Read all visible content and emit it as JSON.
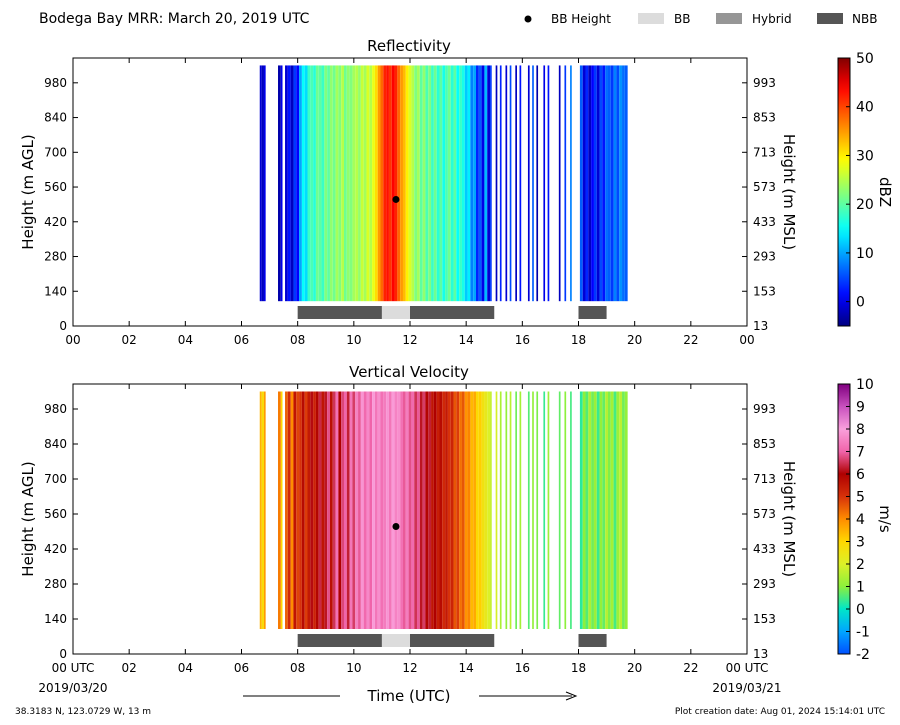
{
  "header": {
    "title": "Bodega Bay MRR:  March 20, 2019 UTC",
    "legend": [
      {
        "label": "BB Height",
        "marker": "dot",
        "color": "#000000"
      },
      {
        "label": "BB",
        "marker": "box",
        "color": "#dcdcdc"
      },
      {
        "label": "Hybrid",
        "marker": "box",
        "color": "#969696"
      },
      {
        "label": "NBB",
        "marker": "box",
        "color": "#555555"
      }
    ]
  },
  "footer": {
    "location": "38.3183 N, 123.0729 W, 13 m",
    "creation": "Plot creation date: Aug 01, 2024 15:14:01 UTC",
    "xlabel": "Time (UTC)",
    "start_date": "2019/03/20",
    "end_date": "2019/03/21"
  },
  "chart_data": [
    {
      "type": "heatmap",
      "title": "Reflectivity",
      "ylabel": "Height (m AGL)",
      "ylabel_right": "Height (m MSL)",
      "xlim": [
        0,
        24
      ],
      "ylim": [
        0,
        1080
      ],
      "x_ticks": [
        "00",
        "02",
        "04",
        "06",
        "08",
        "10",
        "12",
        "14",
        "16",
        "18",
        "20",
        "22",
        "00"
      ],
      "y_ticks": [
        0,
        140,
        280,
        420,
        560,
        700,
        840,
        980
      ],
      "y_ticks_right": [
        13,
        153,
        293,
        433,
        573,
        713,
        853,
        993
      ],
      "data_height_range": [
        100,
        1050
      ],
      "bb_height": {
        "time": 11.5,
        "height": 510
      },
      "bb_segments": [
        {
          "start": 8.0,
          "end": 11.0,
          "class": "NBB"
        },
        {
          "start": 11.0,
          "end": 12.0,
          "class": "BB"
        },
        {
          "start": 12.0,
          "end": 15.0,
          "class": "NBB"
        },
        {
          "start": 18.0,
          "end": 19.0,
          "class": "NBB"
        }
      ],
      "columns": [
        [
          6.65,
          -1
        ],
        [
          6.72,
          -2
        ],
        [
          6.8,
          0
        ],
        [
          7.3,
          -3
        ],
        [
          7.4,
          0
        ],
        [
          7.55,
          -1
        ],
        [
          7.65,
          2
        ],
        [
          7.75,
          -2
        ],
        [
          7.85,
          4
        ],
        [
          7.95,
          1
        ],
        [
          8.05,
          10
        ],
        [
          8.15,
          15
        ],
        [
          8.25,
          13
        ],
        [
          8.35,
          18
        ],
        [
          8.45,
          19
        ],
        [
          8.55,
          17
        ],
        [
          8.65,
          21
        ],
        [
          8.75,
          20
        ],
        [
          8.85,
          18
        ],
        [
          8.95,
          22
        ],
        [
          9.05,
          20
        ],
        [
          9.15,
          23
        ],
        [
          9.25,
          21
        ],
        [
          9.35,
          24
        ],
        [
          9.45,
          22
        ],
        [
          9.55,
          25
        ],
        [
          9.65,
          21
        ],
        [
          9.75,
          23
        ],
        [
          9.85,
          22
        ],
        [
          9.95,
          24
        ],
        [
          10.05,
          25
        ],
        [
          10.15,
          23
        ],
        [
          10.25,
          26
        ],
        [
          10.35,
          24
        ],
        [
          10.45,
          27
        ],
        [
          10.55,
          25
        ],
        [
          10.65,
          28
        ],
        [
          10.75,
          31
        ],
        [
          10.85,
          35
        ],
        [
          10.95,
          38
        ],
        [
          11.05,
          42
        ],
        [
          11.15,
          43
        ],
        [
          11.25,
          41
        ],
        [
          11.35,
          44
        ],
        [
          11.45,
          42
        ],
        [
          11.55,
          38
        ],
        [
          11.65,
          35
        ],
        [
          11.75,
          33
        ],
        [
          11.85,
          30
        ],
        [
          11.95,
          27
        ],
        [
          12.05,
          25
        ],
        [
          12.15,
          22
        ],
        [
          12.25,
          24
        ],
        [
          12.35,
          20
        ],
        [
          12.45,
          23
        ],
        [
          12.55,
          19
        ],
        [
          12.65,
          22
        ],
        [
          12.75,
          18
        ],
        [
          12.85,
          21
        ],
        [
          12.95,
          17
        ],
        [
          13.05,
          20
        ],
        [
          13.15,
          16
        ],
        [
          13.25,
          19
        ],
        [
          13.35,
          21
        ],
        [
          13.45,
          17
        ],
        [
          13.55,
          20
        ],
        [
          13.65,
          15
        ],
        [
          13.75,
          18
        ],
        [
          13.85,
          16
        ],
        [
          13.95,
          12
        ],
        [
          14.05,
          14
        ],
        [
          14.15,
          8
        ],
        [
          14.25,
          10
        ],
        [
          14.35,
          3
        ],
        [
          14.45,
          6
        ],
        [
          14.55,
          0
        ],
        [
          14.65,
          11
        ],
        [
          14.75,
          -1
        ],
        [
          14.85,
          4
        ],
        [
          15.05,
          -2
        ],
        [
          15.2,
          3
        ],
        [
          15.4,
          -1
        ],
        [
          15.55,
          5
        ],
        [
          15.75,
          -2
        ],
        [
          15.9,
          2
        ],
        [
          16.2,
          -1
        ],
        [
          16.35,
          6
        ],
        [
          16.5,
          -3
        ],
        [
          16.75,
          0
        ],
        [
          16.9,
          2
        ],
        [
          17.3,
          -2
        ],
        [
          17.5,
          4
        ],
        [
          17.7,
          8
        ],
        [
          18.05,
          6
        ],
        [
          18.15,
          -1
        ],
        [
          18.25,
          3
        ],
        [
          18.35,
          -2
        ],
        [
          18.45,
          1
        ],
        [
          18.55,
          4
        ],
        [
          18.65,
          -1
        ],
        [
          18.75,
          5
        ],
        [
          18.85,
          2
        ],
        [
          18.95,
          7
        ],
        [
          19.05,
          6
        ],
        [
          19.15,
          4
        ],
        [
          19.25,
          8
        ],
        [
          19.35,
          5
        ],
        [
          19.45,
          9
        ],
        [
          19.55,
          7
        ],
        [
          19.65,
          6
        ]
      ],
      "colorbar": {
        "label": "dBZ",
        "range": [
          -5,
          50
        ],
        "ticks": [
          0,
          10,
          20,
          30,
          40,
          50
        ],
        "colormap": "jet"
      }
    },
    {
      "type": "heatmap",
      "title": "Vertical Velocity",
      "ylabel": "Height (m AGL)",
      "ylabel_right": "Height (m MSL)",
      "xlim": [
        0,
        24
      ],
      "ylim": [
        0,
        1080
      ],
      "x_ticks": [
        "00 UTC",
        "02",
        "04",
        "06",
        "08",
        "10",
        "12",
        "14",
        "16",
        "18",
        "20",
        "22",
        "00 UTC"
      ],
      "y_ticks": [
        0,
        140,
        280,
        420,
        560,
        700,
        840,
        980
      ],
      "y_ticks_right": [
        13,
        153,
        293,
        433,
        573,
        713,
        853,
        993
      ],
      "data_height_range": [
        100,
        1050
      ],
      "bb_height": {
        "time": 11.5,
        "height": 510
      },
      "bb_segments": [
        {
          "start": 8.0,
          "end": 11.0,
          "class": "NBB"
        },
        {
          "start": 11.0,
          "end": 12.0,
          "class": "BB"
        },
        {
          "start": 12.0,
          "end": 15.0,
          "class": "NBB"
        },
        {
          "start": 18.0,
          "end": 19.0,
          "class": "NBB"
        }
      ],
      "columns": [
        [
          6.65,
          3.5
        ],
        [
          6.72,
          2.8
        ],
        [
          6.8,
          3.8
        ],
        [
          7.3,
          4.2
        ],
        [
          7.4,
          3.0
        ],
        [
          7.55,
          4.5
        ],
        [
          7.65,
          5.2
        ],
        [
          7.75,
          4.0
        ],
        [
          7.85,
          5.6
        ],
        [
          7.95,
          4.8
        ],
        [
          8.05,
          5.0
        ],
        [
          8.15,
          5.8
        ],
        [
          8.25,
          4.9
        ],
        [
          8.35,
          5.5
        ],
        [
          8.45,
          6.1
        ],
        [
          8.55,
          5.3
        ],
        [
          8.65,
          5.9
        ],
        [
          8.75,
          6.4
        ],
        [
          8.85,
          5.6
        ],
        [
          8.95,
          6.2
        ],
        [
          9.05,
          6.8
        ],
        [
          9.15,
          5.7
        ],
        [
          9.25,
          6.5
        ],
        [
          9.35,
          7.2
        ],
        [
          9.45,
          6.0
        ],
        [
          9.55,
          6.7
        ],
        [
          9.65,
          7.0
        ],
        [
          9.75,
          6.3
        ],
        [
          9.85,
          7.3
        ],
        [
          9.95,
          6.6
        ],
        [
          10.05,
          7.5
        ],
        [
          10.15,
          6.9
        ],
        [
          10.25,
          7.8
        ],
        [
          10.35,
          7.1
        ],
        [
          10.45,
          7.6
        ],
        [
          10.55,
          7.0
        ],
        [
          10.65,
          7.9
        ],
        [
          10.75,
          7.3
        ],
        [
          10.85,
          7.7
        ],
        [
          10.95,
          7.2
        ],
        [
          11.05,
          7.4
        ],
        [
          11.15,
          7.8
        ],
        [
          11.25,
          7.3
        ],
        [
          11.35,
          7.9
        ],
        [
          11.45,
          7.5
        ],
        [
          11.55,
          7.7
        ],
        [
          11.65,
          7.2
        ],
        [
          11.75,
          6.9
        ],
        [
          11.85,
          7.4
        ],
        [
          11.95,
          6.8
        ],
        [
          12.05,
          7.1
        ],
        [
          12.15,
          6.5
        ],
        [
          12.25,
          6.9
        ],
        [
          12.35,
          6.2
        ],
        [
          12.45,
          6.6
        ],
        [
          12.55,
          5.9
        ],
        [
          12.65,
          6.3
        ],
        [
          12.75,
          5.6
        ],
        [
          12.85,
          6.0
        ],
        [
          12.95,
          5.4
        ],
        [
          13.05,
          5.8
        ],
        [
          13.15,
          5.2
        ],
        [
          13.25,
          5.5
        ],
        [
          13.35,
          5.0
        ],
        [
          13.45,
          5.3
        ],
        [
          13.55,
          4.6
        ],
        [
          13.65,
          4.9
        ],
        [
          13.75,
          4.3
        ],
        [
          13.85,
          4.6
        ],
        [
          13.95,
          3.9
        ],
        [
          14.05,
          4.1
        ],
        [
          14.15,
          3.4
        ],
        [
          14.25,
          3.6
        ],
        [
          14.35,
          2.9
        ],
        [
          14.45,
          3.1
        ],
        [
          14.55,
          2.6
        ],
        [
          14.65,
          2.3
        ],
        [
          14.75,
          2.0
        ],
        [
          14.85,
          1.7
        ],
        [
          15.05,
          1.9
        ],
        [
          15.2,
          1.4
        ],
        [
          15.4,
          1.1
        ],
        [
          15.55,
          1.6
        ],
        [
          15.75,
          0.8
        ],
        [
          15.9,
          1.3
        ],
        [
          16.2,
          0.6
        ],
        [
          16.35,
          1.1
        ],
        [
          16.5,
          0.9
        ],
        [
          16.75,
          0.4
        ],
        [
          16.9,
          1.2
        ],
        [
          17.3,
          0.7
        ],
        [
          17.5,
          1.0
        ],
        [
          17.7,
          0.5
        ],
        [
          18.05,
          0.3
        ],
        [
          18.15,
          1.0
        ],
        [
          18.25,
          0.6
        ],
        [
          18.35,
          1.4
        ],
        [
          18.45,
          0.8
        ],
        [
          18.55,
          1.2
        ],
        [
          18.65,
          0.4
        ],
        [
          18.75,
          1.1
        ],
        [
          18.85,
          0.7
        ],
        [
          18.95,
          1.5
        ],
        [
          19.05,
          0.9
        ],
        [
          19.15,
          1.3
        ],
        [
          19.25,
          0.5
        ],
        [
          19.35,
          1.2
        ],
        [
          19.45,
          1.6
        ],
        [
          19.55,
          0.8
        ],
        [
          19.65,
          1.1
        ]
      ],
      "colorbar": {
        "label": "m/s",
        "range": [
          -2,
          10
        ],
        "ticks": [
          -2,
          -1,
          0,
          1,
          2,
          3,
          4,
          5,
          6,
          7,
          8,
          9,
          10
        ],
        "colormap": "velocity"
      }
    }
  ]
}
